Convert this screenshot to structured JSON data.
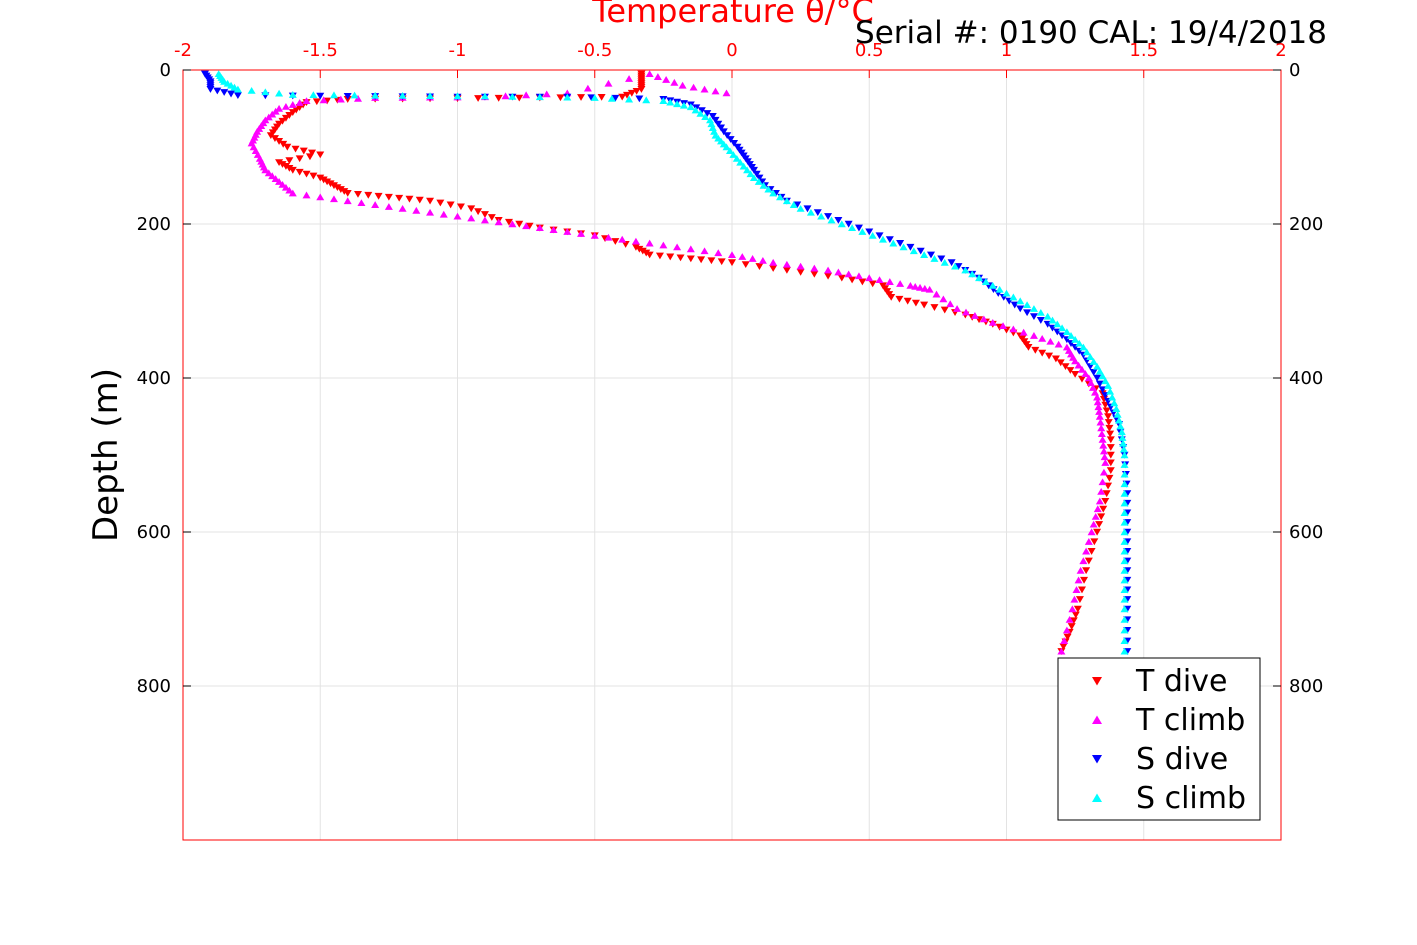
{
  "serial_label": "Serial #: 0190  CAL: 19/4/2018",
  "colors": {
    "T dive": "#ff0000",
    "T climb": "#ff00ff",
    "S dive": "#0000ff",
    "S climb": "#00ffff",
    "axis": "#ff0000",
    "grid": "#e3e3e3"
  },
  "chart_data": {
    "type": "scatter",
    "title": "Temperature θ/°C",
    "xlabel": "Temperature θ/°C",
    "ylabel": "Depth (m)",
    "xlim": [
      -2,
      2
    ],
    "ylim": [
      0,
      1000
    ],
    "y_reversed": true,
    "xaxis_location": "top",
    "x_ticks": [
      "-2",
      "-1.5",
      "-1",
      "-0.5",
      "0",
      "0.5",
      "1",
      "1.5",
      "2"
    ],
    "x_tick_values": [
      -2,
      -1.5,
      -1,
      -0.5,
      0,
      0.5,
      1,
      1.5,
      2
    ],
    "y_ticks": [
      "0",
      "200",
      "400",
      "600",
      "800"
    ],
    "y_tick_values": [
      0,
      200,
      400,
      600,
      800
    ],
    "grid": true,
    "legend_position": "bottom-right",
    "series": [
      {
        "name": "T dive",
        "marker": "triangle-down",
        "points": [
          [
            -0.33,
            5
          ],
          [
            -0.33,
            15
          ],
          [
            -0.33,
            25
          ],
          [
            -0.4,
            35
          ],
          [
            -0.7,
            36
          ],
          [
            -1.0,
            37
          ],
          [
            -1.4,
            38
          ],
          [
            -1.55,
            42
          ],
          [
            -1.6,
            55
          ],
          [
            -1.65,
            70
          ],
          [
            -1.68,
            85
          ],
          [
            -1.62,
            100
          ],
          [
            -1.5,
            110
          ],
          [
            -1.65,
            120
          ],
          [
            -1.6,
            130
          ],
          [
            -1.5,
            140
          ],
          [
            -1.45,
            150
          ],
          [
            -1.4,
            160
          ],
          [
            -1.25,
            165
          ],
          [
            -1.1,
            170
          ],
          [
            -0.95,
            180
          ],
          [
            -0.85,
            195
          ],
          [
            -0.7,
            205
          ],
          [
            -0.5,
            215
          ],
          [
            -0.35,
            230
          ],
          [
            -0.3,
            240
          ],
          [
            -0.15,
            245
          ],
          [
            0.0,
            250
          ],
          [
            0.2,
            260
          ],
          [
            0.4,
            270
          ],
          [
            0.55,
            280
          ],
          [
            0.58,
            295
          ],
          [
            0.7,
            305
          ],
          [
            0.85,
            318
          ],
          [
            0.95,
            330
          ],
          [
            1.05,
            345
          ],
          [
            1.08,
            360
          ],
          [
            1.18,
            375
          ],
          [
            1.25,
            395
          ],
          [
            1.35,
            420
          ],
          [
            1.37,
            450
          ],
          [
            1.38,
            480
          ],
          [
            1.38,
            520
          ],
          [
            1.36,
            560
          ],
          [
            1.33,
            600
          ],
          [
            1.29,
            650
          ],
          [
            1.26,
            700
          ],
          [
            1.23,
            730
          ],
          [
            1.2,
            755
          ]
        ]
      },
      {
        "name": "T climb",
        "marker": "triangle-up",
        "points": [
          [
            -0.02,
            30
          ],
          [
            -0.18,
            20
          ],
          [
            -0.3,
            5
          ],
          [
            -0.6,
            30
          ],
          [
            -0.9,
            35
          ],
          [
            -1.3,
            36
          ],
          [
            -1.55,
            40
          ],
          [
            -1.65,
            50
          ],
          [
            -1.7,
            65
          ],
          [
            -1.73,
            80
          ],
          [
            -1.75,
            95
          ],
          [
            -1.72,
            115
          ],
          [
            -1.7,
            130
          ],
          [
            -1.65,
            145
          ],
          [
            -1.6,
            160
          ],
          [
            -1.4,
            170
          ],
          [
            -1.2,
            180
          ],
          [
            -1.0,
            190
          ],
          [
            -0.8,
            200
          ],
          [
            -0.6,
            210
          ],
          [
            -0.4,
            220
          ],
          [
            -0.2,
            230
          ],
          [
            0.0,
            240
          ],
          [
            0.15,
            250
          ],
          [
            0.35,
            260
          ],
          [
            0.5,
            270
          ],
          [
            0.65,
            280
          ],
          [
            0.72,
            285
          ],
          [
            0.82,
            310
          ],
          [
            0.95,
            328
          ],
          [
            1.1,
            345
          ],
          [
            1.22,
            360
          ],
          [
            1.25,
            378
          ],
          [
            1.3,
            400
          ],
          [
            1.33,
            425
          ],
          [
            1.34,
            450
          ],
          [
            1.35,
            480
          ],
          [
            1.36,
            510
          ],
          [
            1.34,
            560
          ],
          [
            1.31,
            600
          ],
          [
            1.27,
            650
          ],
          [
            1.24,
            700
          ],
          [
            1.2,
            755
          ]
        ]
      },
      {
        "name": "S dive",
        "marker": "triangle-down",
        "points": [
          [
            -1.92,
            5
          ],
          [
            -1.9,
            15
          ],
          [
            -1.9,
            25
          ],
          [
            -1.8,
            33
          ],
          [
            -1.4,
            34
          ],
          [
            -1.0,
            35
          ],
          [
            -0.6,
            35
          ],
          [
            -0.25,
            38
          ],
          [
            -0.15,
            45
          ],
          [
            -0.07,
            60
          ],
          [
            -0.03,
            80
          ],
          [
            0.02,
            100
          ],
          [
            0.05,
            115
          ],
          [
            0.08,
            130
          ],
          [
            0.12,
            150
          ],
          [
            0.2,
            170
          ],
          [
            0.35,
            190
          ],
          [
            0.5,
            210
          ],
          [
            0.65,
            230
          ],
          [
            0.8,
            250
          ],
          [
            0.9,
            270
          ],
          [
            0.97,
            290
          ],
          [
            1.05,
            310
          ],
          [
            1.15,
            330
          ],
          [
            1.22,
            350
          ],
          [
            1.28,
            370
          ],
          [
            1.33,
            400
          ],
          [
            1.37,
            430
          ],
          [
            1.41,
            460
          ],
          [
            1.43,
            500
          ],
          [
            1.44,
            550
          ],
          [
            1.44,
            600
          ],
          [
            1.44,
            650
          ],
          [
            1.44,
            700
          ],
          [
            1.44,
            755
          ]
        ]
      },
      {
        "name": "S climb",
        "marker": "triangle-up",
        "points": [
          [
            -1.87,
            5
          ],
          [
            -1.85,
            15
          ],
          [
            -1.8,
            25
          ],
          [
            -1.6,
            32
          ],
          [
            -1.3,
            33
          ],
          [
            -0.9,
            34
          ],
          [
            -0.5,
            36
          ],
          [
            -0.25,
            40
          ],
          [
            -0.15,
            48
          ],
          [
            -0.08,
            65
          ],
          [
            -0.06,
            85
          ],
          [
            -0.02,
            100
          ],
          [
            0.03,
            120
          ],
          [
            0.08,
            140
          ],
          [
            0.15,
            160
          ],
          [
            0.25,
            180
          ],
          [
            0.4,
            200
          ],
          [
            0.55,
            220
          ],
          [
            0.7,
            240
          ],
          [
            0.85,
            260
          ],
          [
            0.95,
            280
          ],
          [
            1.05,
            300
          ],
          [
            1.15,
            320
          ],
          [
            1.22,
            340
          ],
          [
            1.28,
            360
          ],
          [
            1.33,
            385
          ],
          [
            1.37,
            410
          ],
          [
            1.4,
            440
          ],
          [
            1.42,
            470
          ],
          [
            1.43,
            500
          ],
          [
            1.43,
            550
          ],
          [
            1.43,
            600
          ],
          [
            1.43,
            650
          ],
          [
            1.43,
            700
          ],
          [
            1.43,
            755
          ]
        ]
      }
    ]
  }
}
